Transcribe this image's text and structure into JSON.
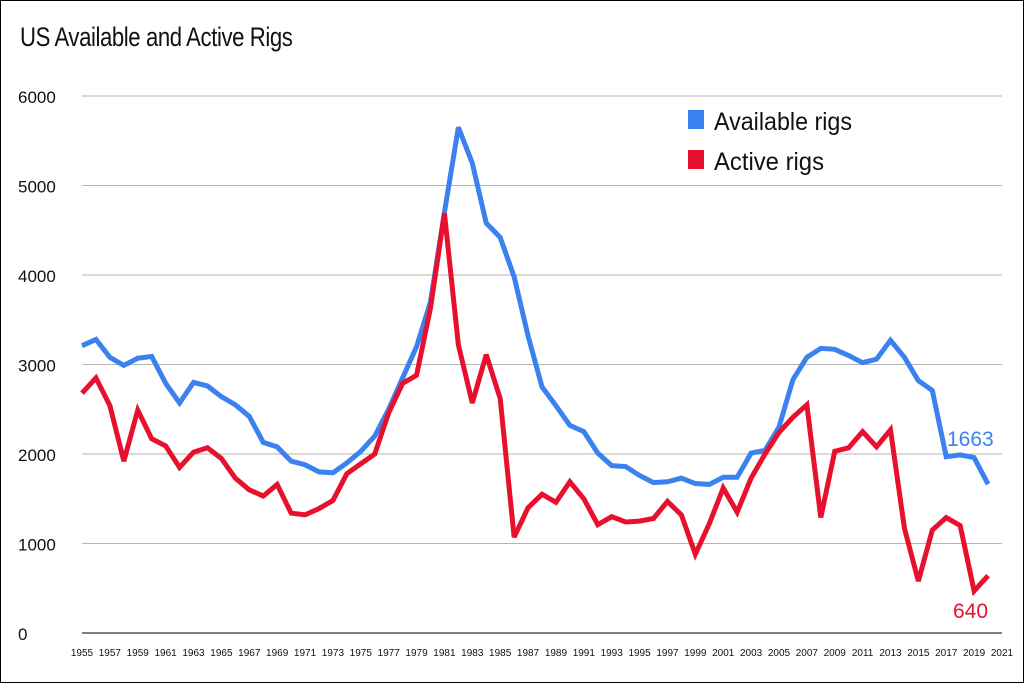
{
  "chart_data": {
    "type": "line",
    "title": "US Available and Active Rigs",
    "xlabel": "",
    "ylabel": "",
    "ylim": [
      0,
      6000
    ],
    "yticks": [
      0,
      1000,
      2000,
      3000,
      4000,
      5000,
      6000
    ],
    "x": [
      1955,
      1956,
      1957,
      1958,
      1959,
      1960,
      1961,
      1962,
      1963,
      1964,
      1965,
      1966,
      1967,
      1968,
      1969,
      1970,
      1971,
      1972,
      1973,
      1974,
      1975,
      1976,
      1977,
      1978,
      1979,
      1980,
      1981,
      1982,
      1983,
      1984,
      1985,
      1986,
      1987,
      1988,
      1989,
      1990,
      1991,
      1992,
      1993,
      1994,
      1995,
      1996,
      1997,
      1998,
      1999,
      2000,
      2001,
      2002,
      2003,
      2004,
      2005,
      2006,
      2007,
      2008,
      2009,
      2010,
      2011,
      2012,
      2013,
      2014,
      2015,
      2016,
      2017,
      2018,
      2019,
      2020
    ],
    "xticks": [
      "1955",
      "1957",
      "1959",
      "1961",
      "1963",
      "1965",
      "1967",
      "1969",
      "1971",
      "1973",
      "1975",
      "1977",
      "1979",
      "1981",
      "1983",
      "1985",
      "1987",
      "1989",
      "1991",
      "1993",
      "1995",
      "1997",
      "1999",
      "2001",
      "2003",
      "2005",
      "2007",
      "2009",
      "2011",
      "2013",
      "2015",
      "2017",
      "2019",
      "2021"
    ],
    "legend_position": "top-right",
    "series": [
      {
        "name": "Available rigs",
        "color": "#3b82f0",
        "values": [
          3210,
          3280,
          3080,
          2990,
          3070,
          3090,
          2790,
          2570,
          2800,
          2760,
          2640,
          2550,
          2420,
          2130,
          2080,
          1920,
          1880,
          1800,
          1790,
          1900,
          2030,
          2200,
          2500,
          2850,
          3200,
          3700,
          4700,
          5650,
          5250,
          4580,
          4420,
          3980,
          3320,
          2750,
          2540,
          2320,
          2250,
          2010,
          1870,
          1860,
          1760,
          1680,
          1690,
          1730,
          1670,
          1660,
          1740,
          1740,
          2010,
          2040,
          2300,
          2830,
          3080,
          3180,
          3170,
          3100,
          3020,
          3060,
          3270,
          3080,
          2820,
          2710,
          1970,
          1990,
          1960,
          1663
        ],
        "end_label": "1663"
      },
      {
        "name": "Active rigs",
        "color": "#e8112d",
        "values": [
          2680,
          2850,
          2540,
          1920,
          2490,
          2170,
          2090,
          1850,
          2020,
          2070,
          1950,
          1730,
          1600,
          1530,
          1660,
          1340,
          1320,
          1390,
          1480,
          1780,
          1890,
          2000,
          2460,
          2790,
          2880,
          3630,
          4690,
          3220,
          2570,
          3110,
          2620,
          1070,
          1400,
          1550,
          1460,
          1690,
          1500,
          1210,
          1300,
          1240,
          1250,
          1280,
          1470,
          1320,
          880,
          1220,
          1620,
          1350,
          1730,
          2000,
          2240,
          2410,
          2550,
          1290,
          2030,
          2070,
          2250,
          2080,
          2270,
          1170,
          580,
          1150,
          1290,
          1200,
          470,
          640
        ],
        "end_label": "640"
      }
    ]
  }
}
